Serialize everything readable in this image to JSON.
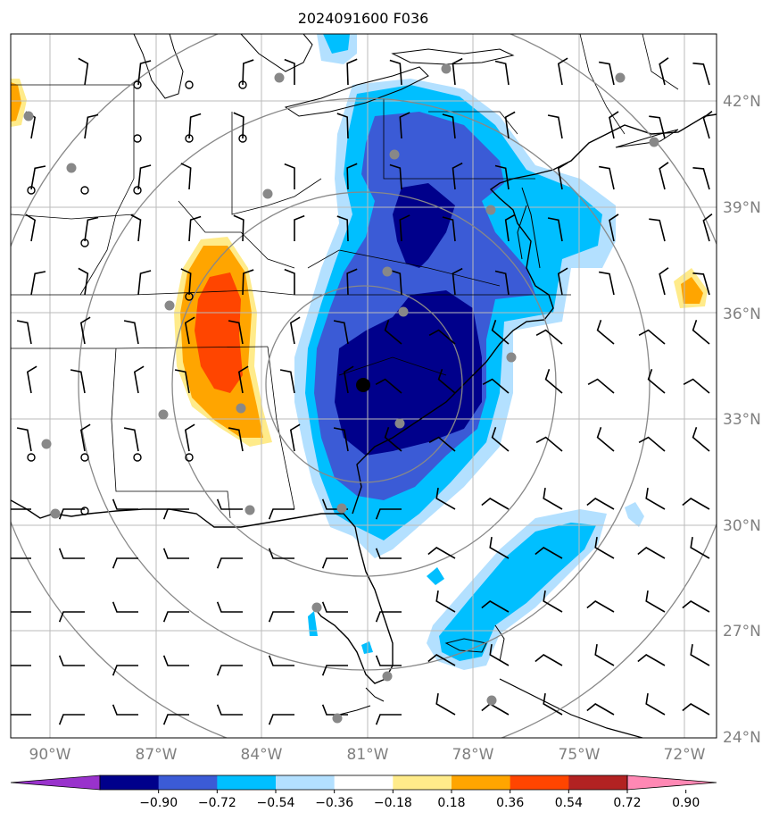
{
  "map": {
    "title": "2024091600 F036",
    "lat_labels": [
      "42°N",
      "39°N",
      "36°N",
      "33°N",
      "30°N",
      "27°N",
      "24°N"
    ],
    "lon_labels": [
      "90°W",
      "87°W",
      "84°W",
      "81°W",
      "78°W",
      "75°W",
      "72°W"
    ],
    "colorbar": {
      "ticks": [
        "−0.90",
        "−0.72",
        "−0.54",
        "−0.36",
        "−0.18",
        "0.18",
        "0.36",
        "0.54",
        "0.72",
        "0.90"
      ],
      "colors": [
        "#9932cc",
        "#00008b",
        "#3b5bd6",
        "#00bfff",
        "#b3e0ff",
        "#ffffff",
        "#ffeb8a",
        "#ffa500",
        "#ff4500",
        "#b22222",
        "#ff88b4"
      ]
    },
    "fill_colors": {
      "light_blue": "#b3e0ff",
      "cyan": "#00bfff",
      "royal_blue": "#3b5bd6",
      "navy": "#00008b",
      "light_yellow": "#ffeb8a",
      "orange": "#ffa500",
      "red_orange": "#ff4500"
    },
    "gridline_color": "#bbbbbb",
    "range_ring_color": "#888888",
    "station_dot_color": "#888888"
  }
}
